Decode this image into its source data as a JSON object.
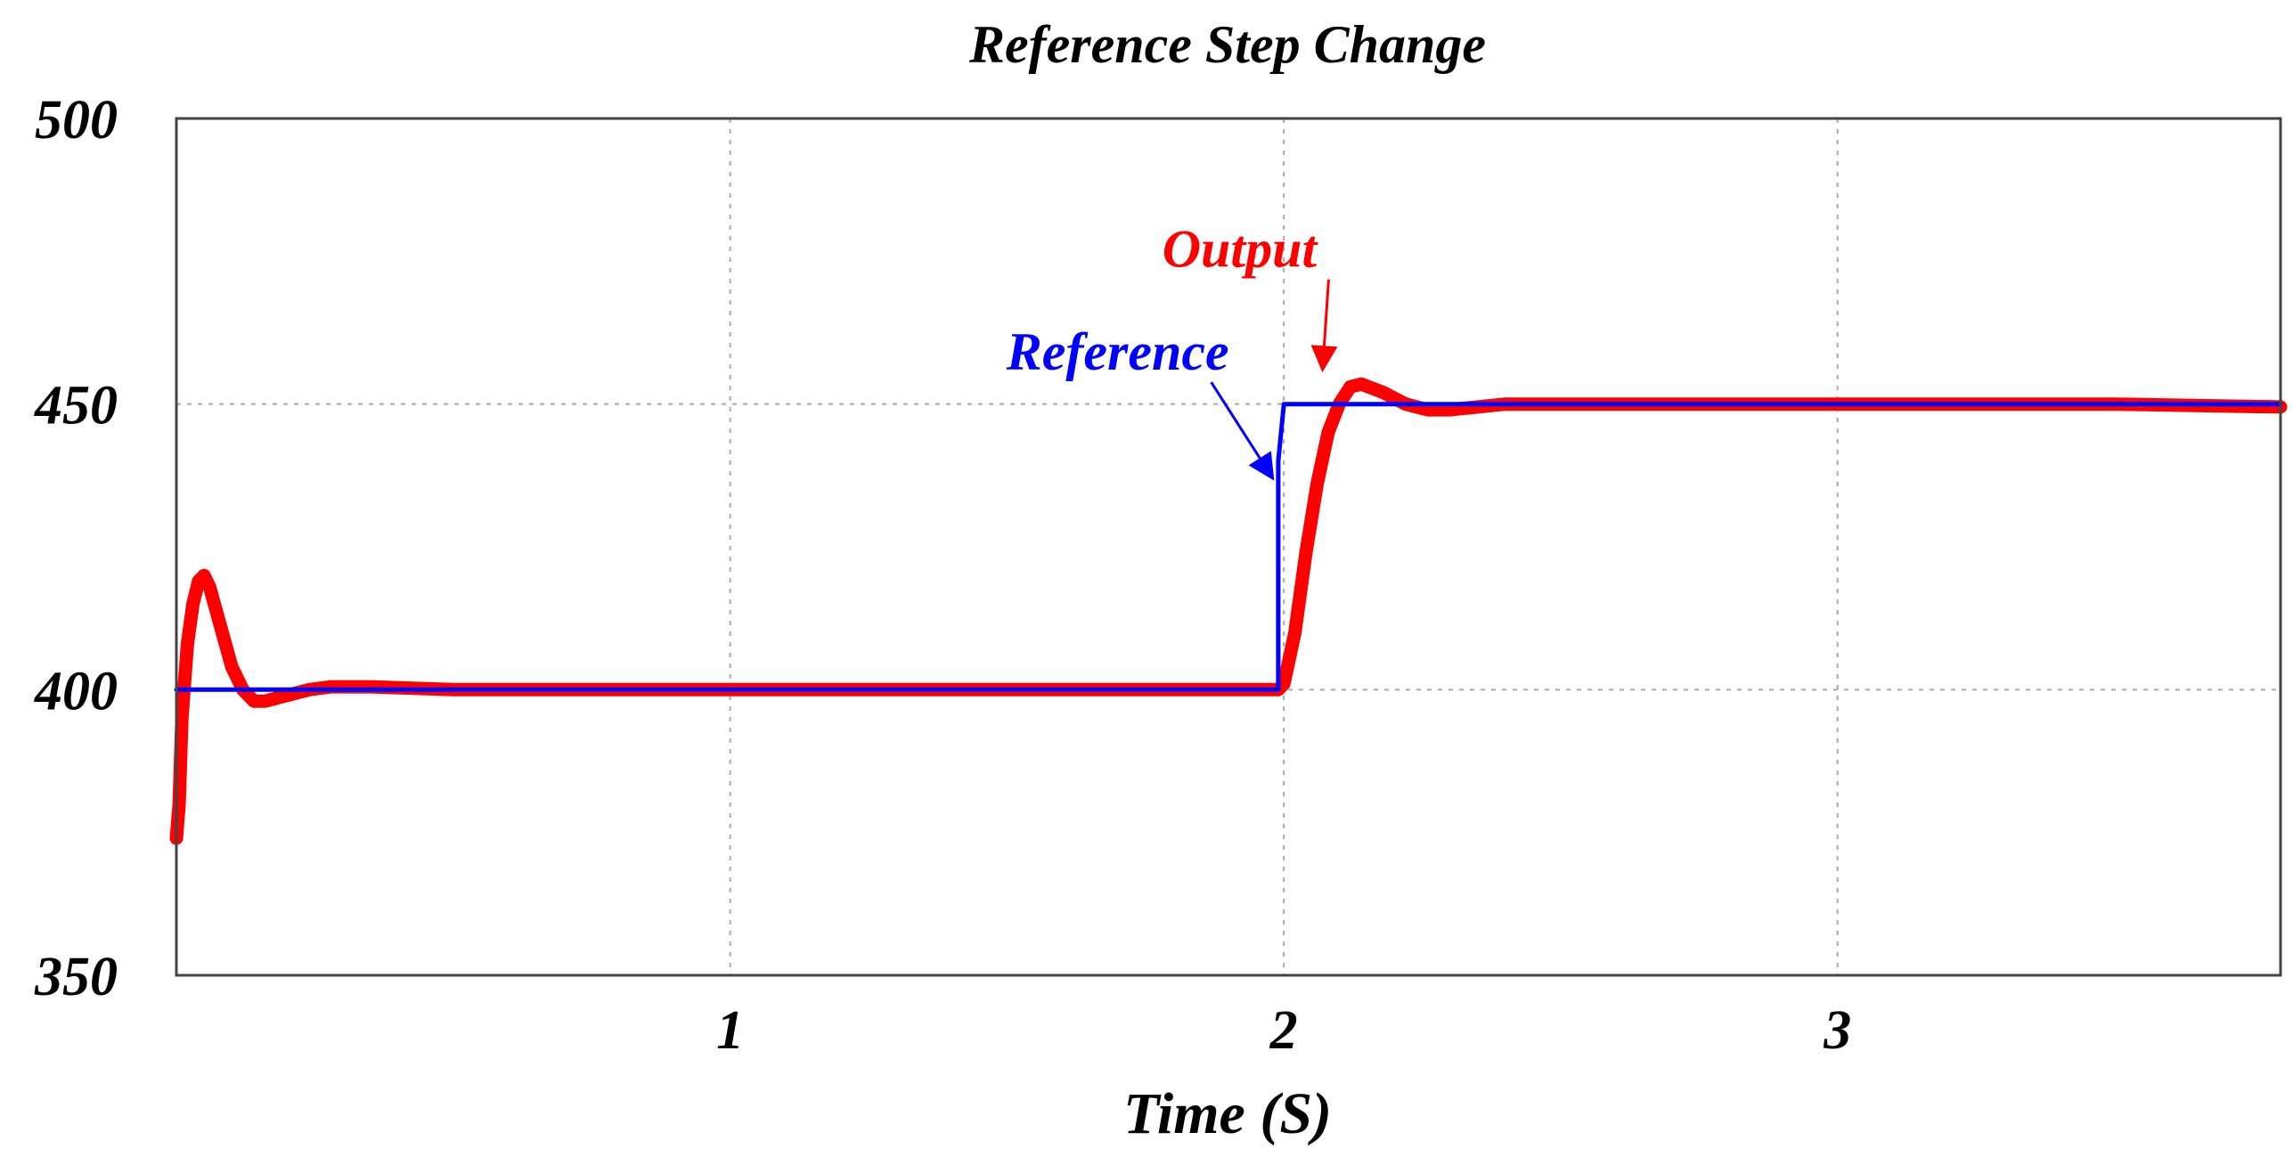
{
  "chart_data": {
    "type": "line",
    "title": "Reference Step Change",
    "xlabel": "Time (S)",
    "ylabel": "",
    "xlim": [
      0.0,
      3.8
    ],
    "ylim": [
      350,
      500
    ],
    "xticks": [
      1,
      2,
      3
    ],
    "xtick_labels": [
      "1",
      "2",
      "3"
    ],
    "yticks": [
      350,
      400,
      450,
      500
    ],
    "ytick_labels": [
      "350",
      "400",
      "450",
      "500"
    ],
    "grid": true,
    "legend": "none",
    "series": [
      {
        "name": "Reference",
        "color": "#0000ff",
        "x": [
          0.0,
          0.5,
          1.0,
          1.5,
          1.99,
          1.99,
          2.0,
          2.5,
          3.0,
          3.5,
          3.8
        ],
        "y": [
          400,
          400,
          400,
          400,
          400,
          440,
          450,
          450,
          450,
          450,
          450
        ]
      },
      {
        "name": "Output",
        "color": "#ff0000",
        "x": [
          0.0,
          0.005,
          0.01,
          0.02,
          0.03,
          0.04,
          0.05,
          0.06,
          0.08,
          0.1,
          0.12,
          0.14,
          0.16,
          0.18,
          0.2,
          0.24,
          0.28,
          0.35,
          0.5,
          1.0,
          1.5,
          1.99,
          2.0,
          2.02,
          2.04,
          2.06,
          2.08,
          2.1,
          2.12,
          2.14,
          2.18,
          2.22,
          2.26,
          2.3,
          2.4,
          2.6,
          3.0,
          3.5,
          3.8
        ],
        "y": [
          374,
          380,
          395,
          408,
          415,
          419,
          420,
          418,
          411,
          404,
          400,
          398,
          398,
          398.5,
          399,
          400,
          400.5,
          400.5,
          400,
          400,
          400,
          400,
          401,
          410,
          424,
          436,
          445,
          450,
          453,
          453.5,
          452,
          450,
          449,
          449,
          450,
          450,
          450,
          450,
          449.5
        ]
      }
    ],
    "annotations": [
      {
        "text": "Output",
        "color": "#ff0000",
        "x": 1.92,
        "y": 474,
        "arrow_to": [
          2.07,
          456
        ]
      },
      {
        "text": "Reference",
        "color": "#0000ff",
        "x": 1.7,
        "y": 456,
        "arrow_to": [
          1.98,
          437
        ]
      }
    ]
  }
}
